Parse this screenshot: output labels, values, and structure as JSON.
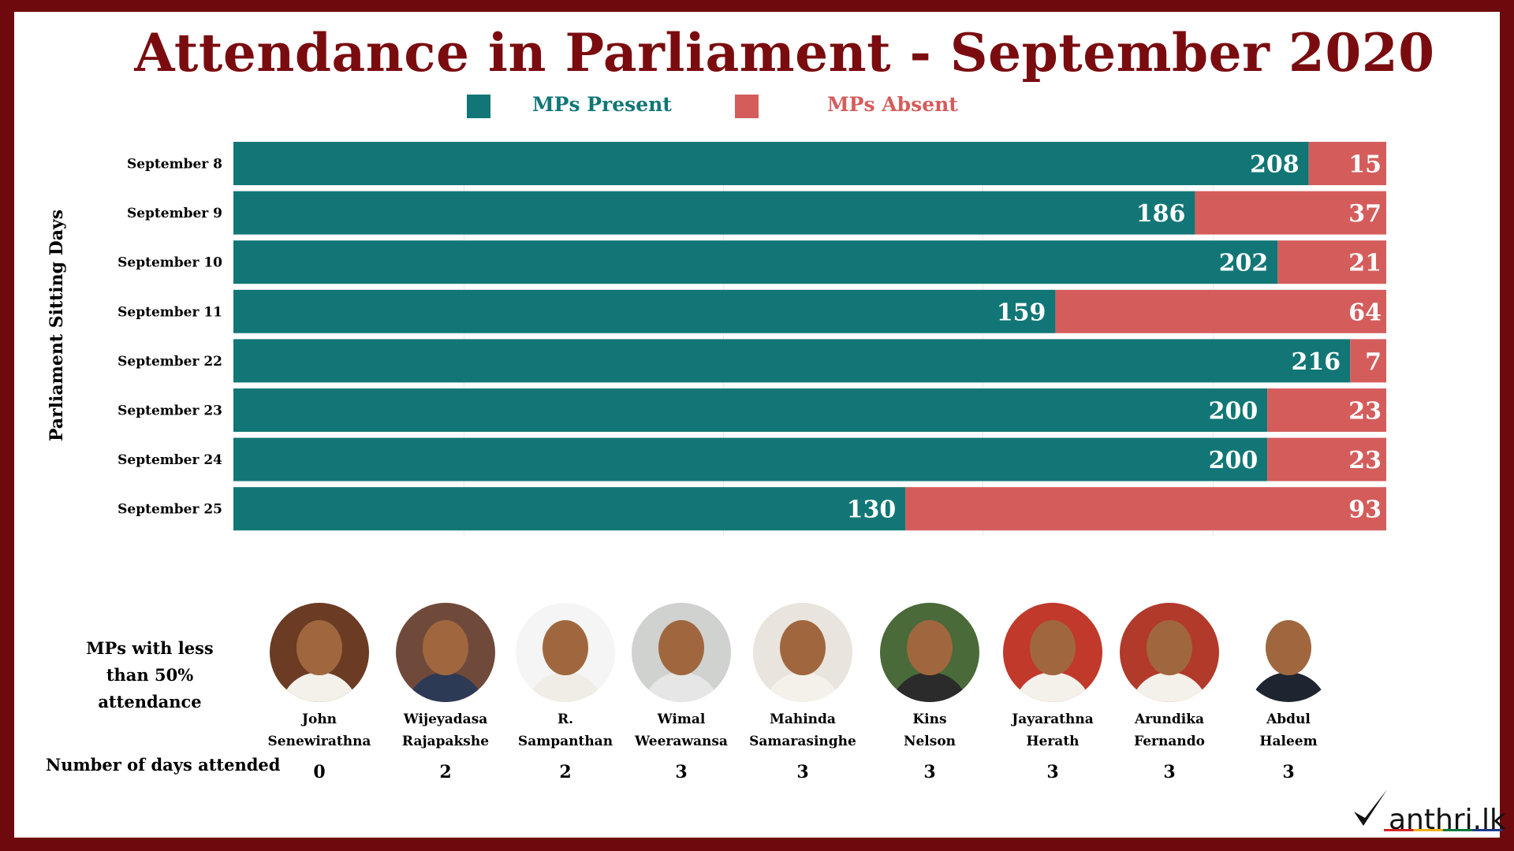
{
  "title": "Attendance in Parliament - September 2020",
  "legend": {
    "present_label": "MPs Present",
    "absent_label": "MPs Absent",
    "present_color": "#127676",
    "absent_color": "#d45d5c"
  },
  "y_axis_label": "Parliament  Sitting  Days",
  "chart_data": {
    "type": "bar",
    "orientation": "horizontal",
    "stacked": true,
    "title": "Attendance in Parliament - September 2020",
    "ylabel": "Parliament  Sitting  Days",
    "xlabel": "",
    "categories": [
      "September  8",
      "September 9",
      "September 10",
      "September 11",
      "September 22",
      "September 23",
      "September  24",
      "September 25"
    ],
    "series": [
      {
        "name": "MPs Present",
        "color": "#127676",
        "values": [
          208,
          186,
          202,
          159,
          216,
          200,
          200,
          130
        ]
      },
      {
        "name": "MPs Absent",
        "color": "#d45d5c",
        "values": [
          15,
          37,
          21,
          64,
          7,
          23,
          23,
          93
        ]
      }
    ],
    "xlim": [
      0,
      223
    ],
    "grid": true,
    "legend_position": "top-center"
  },
  "low_attendance": {
    "title": "MPs with less than 50% attendance",
    "days_label": "Number of days attended",
    "mps": [
      {
        "first": "John",
        "last": "Senewirathna",
        "days": "0"
      },
      {
        "first": "Wijeyadasa",
        "last": "Rajapakshe",
        "days": "2"
      },
      {
        "first": "R.",
        "last": "Sampanthan",
        "days": "2"
      },
      {
        "first": "Wimal",
        "last": "Weerawansa",
        "days": "3"
      },
      {
        "first": "Mahinda",
        "last": "Samarasinghe",
        "days": "3"
      },
      {
        "first": "Kins",
        "last": "Nelson",
        "days": "3"
      },
      {
        "first": "Jayarathna",
        "last": "Herath",
        "days": "3"
      },
      {
        "first": "Arundika",
        "last": "Fernando",
        "days": "3"
      },
      {
        "first": "Abdul",
        "last": "Haleem",
        "days": "3"
      }
    ]
  },
  "logo_text": "anthri.lk"
}
